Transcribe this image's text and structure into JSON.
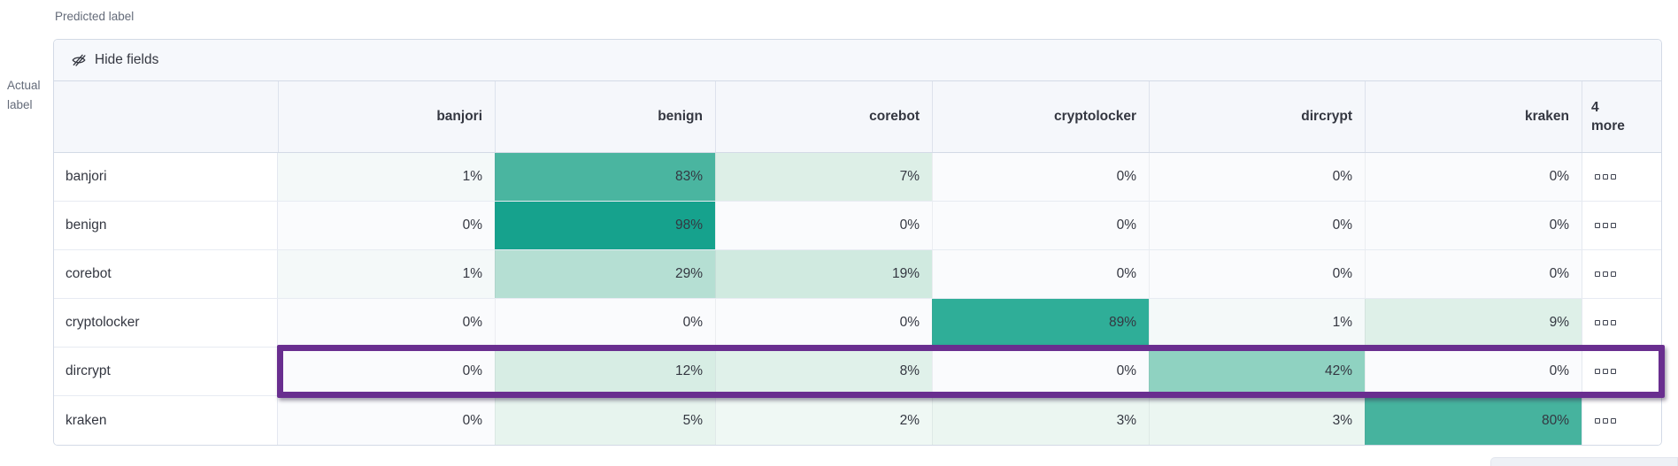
{
  "axis": {
    "predicted_label": "Predicted label",
    "actual_label": "Actual label"
  },
  "toolbar": {
    "hide_fields_label": "Hide fields",
    "hide_fields_icon": "eye-closed-icon"
  },
  "table": {
    "row_actions_icon": "boxes-horizontal-icon"
  },
  "chart_data": {
    "type": "heatmap",
    "x_axis_title": "Predicted label",
    "y_axis_title": "Actual label",
    "columns": [
      "banjori",
      "benign",
      "corebot",
      "cryptolocker",
      "dircrypt",
      "kraken"
    ],
    "overflow_column_label": "4 more",
    "rows": [
      {
        "label": "banjori",
        "values": [
          "1%",
          "83%",
          "7%",
          "0%",
          "0%",
          "0%"
        ],
        "cell_colors": [
          "#F4F9F9",
          "#4AB5A0",
          "#DDEFE7",
          "#FAFBFD",
          "#FAFBFD",
          "#FAFBFD"
        ]
      },
      {
        "label": "benign",
        "values": [
          "0%",
          "98%",
          "0%",
          "0%",
          "0%",
          "0%"
        ],
        "cell_colors": [
          "#FAFBFD",
          "#16A28D",
          "#FAFBFD",
          "#FAFBFD",
          "#FAFBFD",
          "#FAFBFD"
        ]
      },
      {
        "label": "corebot",
        "values": [
          "1%",
          "29%",
          "19%",
          "0%",
          "0%",
          "0%"
        ],
        "cell_colors": [
          "#F4F9F9",
          "#B5DFD3",
          "#D0EAE0",
          "#FAFBFD",
          "#FAFBFD",
          "#FAFBFD"
        ]
      },
      {
        "label": "cryptolocker",
        "values": [
          "0%",
          "0%",
          "0%",
          "89%",
          "1%",
          "9%"
        ],
        "cell_colors": [
          "#FAFBFD",
          "#FAFBFD",
          "#FAFBFD",
          "#2FAE98",
          "#F4F9F9",
          "#DEF0E8"
        ]
      },
      {
        "label": "dircrypt",
        "values": [
          "0%",
          "12%",
          "8%",
          "0%",
          "42%",
          "0%"
        ],
        "cell_colors": [
          "#FAFBFD",
          "#D7EDE4",
          "#E0F1EA",
          "#FAFBFD",
          "#8FD2C1",
          "#FAFBFD"
        ]
      },
      {
        "label": "kraken",
        "values": [
          "0%",
          "5%",
          "2%",
          "3%",
          "3%",
          "80%"
        ],
        "cell_colors": [
          "#FAFBFD",
          "#E7F4EE",
          "#EFF8F4",
          "#EBF6F1",
          "#EBF6F1",
          "#46B39E"
        ]
      }
    ],
    "highlighted_row": "dircrypt",
    "highlight_color": "#692E8F",
    "heat_scale": {
      "min_color": "#FFFFFF",
      "max_color": "#16A28D"
    },
    "legend": "none",
    "grid": "on"
  }
}
